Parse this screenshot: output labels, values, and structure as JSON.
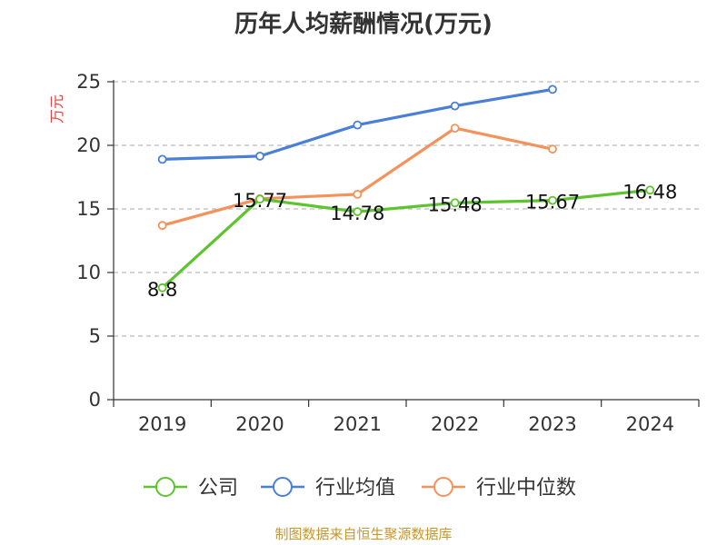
{
  "chart_data": {
    "type": "line",
    "title": "历年人均薪酬情况(万元)",
    "ylabel": "万元",
    "xlabel": "",
    "ylim": [
      0,
      25
    ],
    "yticks": [
      0,
      5,
      10,
      15,
      20,
      25
    ],
    "categories": [
      "2019",
      "2020",
      "2021",
      "2022",
      "2023",
      "2024"
    ],
    "grid": true,
    "legend_position": "bottom",
    "series": [
      {
        "name": "公司",
        "color": "#5cc42e",
        "values": [
          8.8,
          15.77,
          14.78,
          15.48,
          15.67,
          16.48
        ],
        "labels": [
          "8.8",
          "15.77",
          "14.78",
          "15.48",
          "15.67",
          "16.48"
        ]
      },
      {
        "name": "行业均值",
        "color": "#4a7fd8",
        "values": [
          18.9,
          19.15,
          21.6,
          23.1,
          24.4,
          null
        ]
      },
      {
        "name": "行业中位数",
        "color": "#f5915a",
        "values": [
          13.7,
          15.8,
          16.15,
          21.35,
          19.7,
          null
        ]
      }
    ]
  },
  "source_note": "制图数据来自恒生聚源数据库"
}
